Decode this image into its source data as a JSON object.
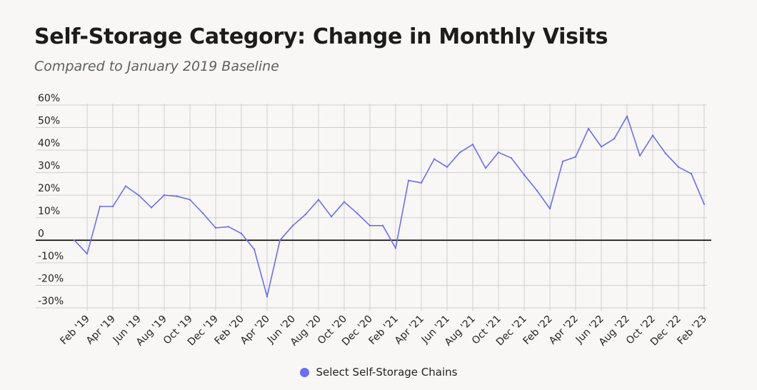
{
  "title": "Self-Storage Category: Change in Monthly Visits",
  "subtitle": "Compared to January 2019 Baseline",
  "colors": {
    "series": "#6b6ef0",
    "grid": "#cfcfcf",
    "zero_line": "#000000"
  },
  "chart_data": {
    "type": "line",
    "title": "Self-Storage Category: Change in Monthly Visits",
    "subtitle": "Compared to January 2019 Baseline",
    "ylim": [
      -30,
      60
    ],
    "y_ticks": [
      60,
      50,
      40,
      30,
      20,
      10,
      0,
      -10,
      -20,
      -30
    ],
    "y_tick_labels": [
      "60%",
      "50%",
      "40%",
      "30%",
      "20%",
      "10%",
      "0",
      "-10%",
      "-20%",
      "-30%"
    ],
    "grid": true,
    "legend_position": "bottom-center",
    "x": [
      "Jan '19",
      "Feb '19",
      "Mar '19",
      "Apr '19",
      "May '19",
      "Jun '19",
      "Jul '19",
      "Aug '19",
      "Sep '19",
      "Oct '19",
      "Nov '19",
      "Dec '19",
      "Jan '20",
      "Feb '20",
      "Mar '20",
      "Apr '20",
      "May '20",
      "Jun '20",
      "Jul '20",
      "Aug '20",
      "Sep '20",
      "Oct '20",
      "Nov '20",
      "Dec '20",
      "Jan '21",
      "Feb '21",
      "Mar '21",
      "Apr '21",
      "May '21",
      "Jun '21",
      "Jul '21",
      "Aug '21",
      "Sep '21",
      "Oct '21",
      "Nov '21",
      "Dec '21",
      "Jan '22",
      "Feb '22",
      "Mar '22",
      "Apr '22",
      "May '22",
      "Jun '22",
      "Jul '22",
      "Aug '22",
      "Sep '22",
      "Oct '22",
      "Nov '22",
      "Dec '22",
      "Jan '23",
      "Feb '23"
    ],
    "x_tick_labels": [
      "Feb '19",
      "Apr '19",
      "Jun '19",
      "Aug '19",
      "Oct '19",
      "Dec '19",
      "Feb '20",
      "Apr '20",
      "Jun '20",
      "Aug '20",
      "Oct '20",
      "Dec '20",
      "Feb '21",
      "Apr '21",
      "Jun '21",
      "Aug '21",
      "Oct '21",
      "Dec '21",
      "Feb '22",
      "Apr '22",
      "Jun '22",
      "Aug '22",
      "Oct '22",
      "Dec '22",
      "Feb '23"
    ],
    "series": [
      {
        "name": "Select Self-Storage Chains",
        "color": "#6b6ef0",
        "values": [
          0,
          -6,
          15,
          15,
          24,
          20,
          14.5,
          20,
          19.5,
          18,
          12,
          5.5,
          6,
          3,
          -4,
          -25,
          0,
          6.5,
          11.5,
          18,
          10.5,
          17,
          12,
          6.5,
          6.5,
          -3.5,
          26.5,
          25.5,
          36,
          32.5,
          39,
          42.5,
          32,
          39,
          36.5,
          29,
          22,
          14,
          35,
          37,
          49.5,
          41.5,
          45,
          55,
          37.5,
          46.5,
          38.5,
          32.5,
          29.5,
          16
        ]
      }
    ]
  }
}
